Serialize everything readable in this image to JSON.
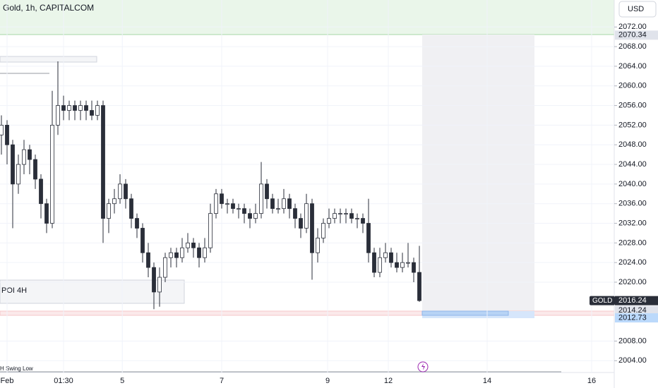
{
  "header": {
    "title": "Gold, 1h, CAPITALCOM",
    "currency": "USD"
  },
  "chart_data": {
    "type": "candlestick",
    "ohlc": [
      [
        2050,
        2054,
        2046,
        2052
      ],
      [
        2052,
        2053,
        2044,
        2048
      ],
      [
        2048,
        2049,
        2031,
        2040
      ],
      [
        2040,
        2046,
        2038,
        2044
      ],
      [
        2044,
        2049,
        2042,
        2047
      ],
      [
        2047,
        2048,
        2042,
        2045
      ],
      [
        2045,
        2046,
        2039,
        2041
      ],
      [
        2041,
        2042,
        2033,
        2036
      ],
      [
        2036,
        2037,
        2030,
        2032
      ],
      [
        2032,
        2059,
        2031,
        2052
      ],
      [
        2052,
        2065,
        2050,
        2056
      ],
      [
        2056,
        2058,
        2053,
        2055
      ],
      [
        2055,
        2057,
        2053,
        2056
      ],
      [
        2056,
        2057,
        2053,
        2055
      ],
      [
        2055,
        2057,
        2053,
        2056
      ],
      [
        2056,
        2057,
        2053,
        2055
      ],
      [
        2055,
        2057,
        2053,
        2054
      ],
      [
        2054,
        2057,
        2053,
        2056
      ],
      [
        2056,
        2057,
        2028,
        2033
      ],
      [
        2033,
        2037,
        2030,
        2036
      ],
      [
        2036,
        2039,
        2034,
        2037
      ],
      [
        2037,
        2042,
        2036,
        2040
      ],
      [
        2040,
        2041,
        2035,
        2037
      ],
      [
        2037,
        2038,
        2031,
        2033
      ],
      [
        2033,
        2034,
        2029,
        2031
      ],
      [
        2031,
        2032,
        2024,
        2026
      ],
      [
        2026,
        2028,
        2021,
        2023
      ],
      [
        2023,
        2024,
        2014.5,
        2018
      ],
      [
        2018,
        2023,
        2015,
        2021
      ],
      [
        2021,
        2026,
        2020,
        2025
      ],
      [
        2025,
        2027,
        2023,
        2026
      ],
      [
        2026,
        2027,
        2023,
        2025
      ],
      [
        2025,
        2029,
        2024,
        2027
      ],
      [
        2027,
        2030,
        2026,
        2028
      ],
      [
        2028,
        2029,
        2025,
        2027
      ],
      [
        2027,
        2028,
        2023,
        2025
      ],
      [
        2025,
        2029,
        2024,
        2027
      ],
      [
        2027,
        2036,
        2026,
        2034
      ],
      [
        2034,
        2039,
        2033,
        2038
      ],
      [
        2038,
        2039,
        2035,
        2036
      ],
      [
        2036,
        2037,
        2034,
        2036
      ],
      [
        2036,
        2037,
        2034,
        2035
      ],
      [
        2035,
        2036,
        2033,
        2035
      ],
      [
        2035,
        2036,
        2032,
        2034
      ],
      [
        2034,
        2035,
        2031,
        2033
      ],
      [
        2033,
        2036,
        2032,
        2034
      ],
      [
        2034,
        2044.5,
        2033,
        2040
      ],
      [
        2040,
        2041,
        2035,
        2037
      ],
      [
        2037,
        2038,
        2034,
        2035
      ],
      [
        2035,
        2037,
        2034,
        2035
      ],
      [
        2035,
        2039,
        2034,
        2037
      ],
      [
        2037,
        2038,
        2033,
        2035
      ],
      [
        2035,
        2036,
        2031,
        2033
      ],
      [
        2033,
        2034,
        2029,
        2031
      ],
      [
        2031,
        2038,
        2030,
        2036
      ],
      [
        2036,
        2037,
        2020.5,
        2026
      ],
      [
        2026,
        2031,
        2024,
        2029
      ],
      [
        2029,
        2033,
        2028,
        2032
      ],
      [
        2032,
        2035,
        2031,
        2033
      ],
      [
        2033,
        2035,
        2032,
        2034
      ],
      [
        2034,
        2035,
        2032,
        2034
      ],
      [
        2034,
        2035,
        2032,
        2034
      ],
      [
        2034,
        2035,
        2032,
        2033
      ],
      [
        2033,
        2034,
        2031,
        2033
      ],
      [
        2033,
        2034,
        2030,
        2032
      ],
      [
        2032,
        2037,
        2024,
        2026
      ],
      [
        2026,
        2027,
        2021,
        2022
      ],
      [
        2022,
        2027,
        2021,
        2025
      ],
      [
        2025,
        2028,
        2024,
        2026
      ],
      [
        2026,
        2027,
        2023,
        2024
      ],
      [
        2024,
        2026,
        2022,
        2023
      ],
      [
        2023,
        2026,
        2022,
        2024
      ],
      [
        2024,
        2028,
        2023,
        2024
      ],
      [
        2024,
        2025,
        2020,
        2022
      ],
      [
        2022,
        2027.4,
        2016,
        2016.24
      ]
    ],
    "xlim": [
      -0.25,
      108.5
    ],
    "xticks": [
      {
        "value": 1,
        "label": "Feb"
      },
      {
        "value": 11,
        "label": "01:30"
      },
      {
        "value": 21.4,
        "label": "5"
      },
      {
        "value": 39,
        "label": "7"
      },
      {
        "value": 57.75,
        "label": "9"
      },
      {
        "value": 68.5,
        "label": "12"
      },
      {
        "value": 86,
        "label": "14"
      },
      {
        "value": 104.5,
        "label": "16"
      }
    ],
    "ylim": [
      2001.6,
      2077.5
    ],
    "yticks": [
      {
        "value": 2004,
        "label": "2004.00"
      },
      {
        "value": 2008,
        "label": "2008.00"
      },
      {
        "value": 2020,
        "label": "2020.00"
      },
      {
        "value": 2024,
        "label": "2024.00"
      },
      {
        "value": 2028,
        "label": "2028.00"
      },
      {
        "value": 2032,
        "label": "2032.00"
      },
      {
        "value": 2036,
        "label": "2036.00"
      },
      {
        "value": 2040,
        "label": "2040.00"
      },
      {
        "value": 2044,
        "label": "2044.00"
      },
      {
        "value": 2048,
        "label": "2048.00"
      },
      {
        "value": 2052,
        "label": "2052.00"
      },
      {
        "value": 2056,
        "label": "2056.00"
      },
      {
        "value": 2060,
        "label": "2060.00"
      },
      {
        "value": 2064,
        "label": "2064.00"
      },
      {
        "value": 2068,
        "label": "2068.00"
      },
      {
        "value": 2072,
        "label": "2072.00"
      }
    ],
    "price_labels": [
      {
        "value": 2070.34,
        "label": "2070.34"
      },
      {
        "value": 2014.24,
        "label": "2014.24"
      },
      {
        "value": 2012.73,
        "label": "2012.73"
      },
      {
        "value": 2016.24,
        "label": "2016.24",
        "tag": "GOLD"
      }
    ],
    "zone_labels": {
      "poi": "POI 4H",
      "swing": "H Swing Low"
    }
  }
}
